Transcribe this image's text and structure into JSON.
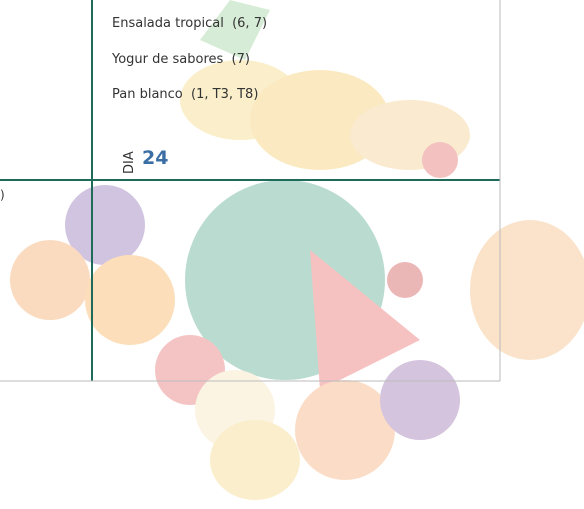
{
  "menu": {
    "items": [
      "Ensalada tropical  (6, 7)",
      "Yogur de sabores  (7)",
      "Pan blanco  (1, T3, T8)"
    ],
    "day_label": "DIA",
    "day_number": 24,
    "fragment": ")"
  }
}
